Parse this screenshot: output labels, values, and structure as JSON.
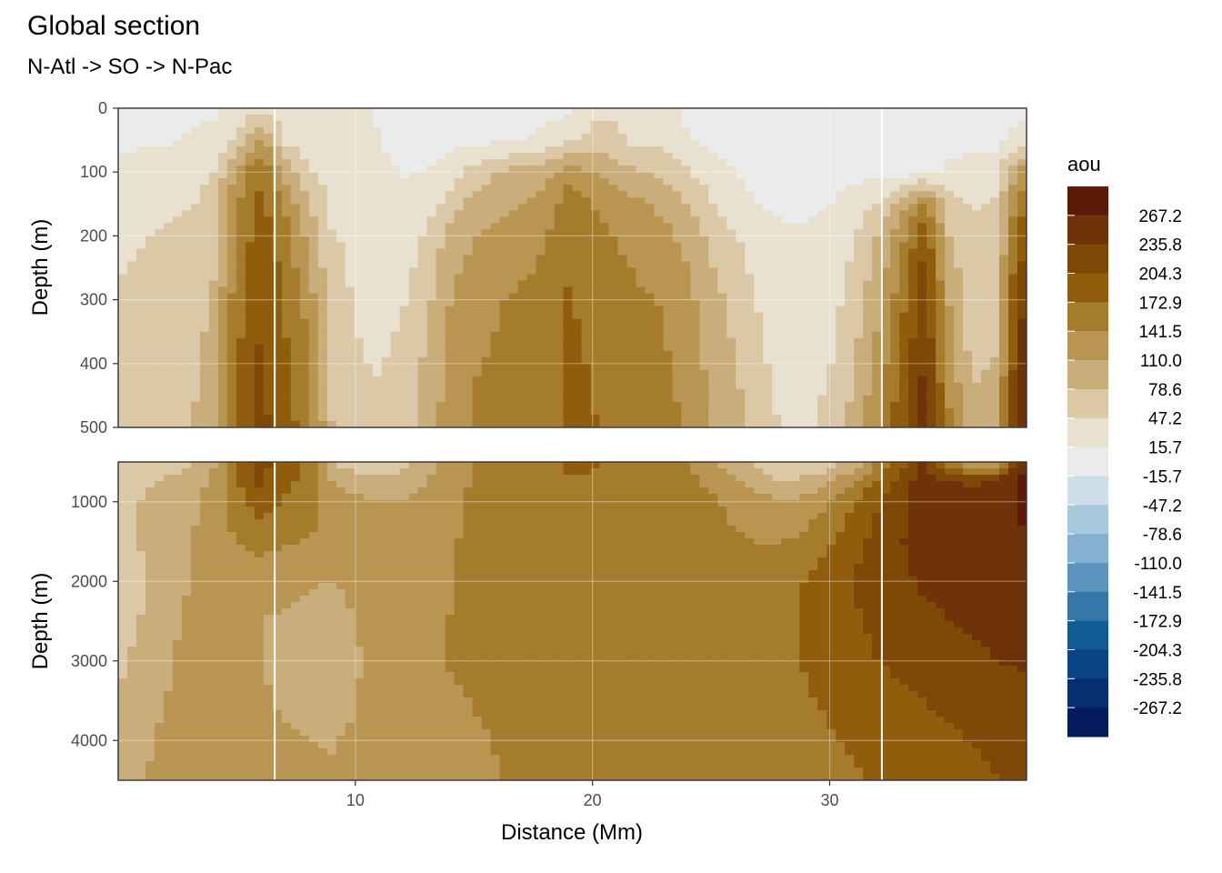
{
  "chart_data": {
    "type": "heatmap",
    "title": "Global section",
    "subtitle": "N-Atl -> SO -> N-Pac",
    "xlabel": "Distance (Mm)",
    "ylabel": "Depth (m)",
    "x_ticks": [
      "10",
      "20",
      "30"
    ],
    "x_range": [
      0,
      38.3
    ],
    "panels": [
      {
        "name": "upper",
        "ylim": [
          0,
          500
        ],
        "y_ticks": [
          "0",
          "100",
          "200",
          "300",
          "400",
          "500"
        ]
      },
      {
        "name": "lower",
        "ylim": [
          500,
          4500
        ],
        "y_ticks": [
          "1000",
          "2000",
          "3000",
          "4000"
        ]
      }
    ],
    "legend": {
      "title": "aou",
      "position": "right",
      "breaks": [
        "267.2",
        "235.8",
        "204.3",
        "172.9",
        "141.5",
        "110.0",
        "78.6",
        "47.2",
        "15.7",
        "-15.7",
        "-47.2",
        "-78.6",
        "-110.0",
        "-141.5",
        "-172.9",
        "-204.3",
        "-235.8",
        "-267.2"
      ],
      "colors": [
        "#5e1a08",
        "#6f3209",
        "#7e4807",
        "#8f5d0c",
        "#a57c2c",
        "#b99552",
        "#c9ad7a",
        "#dbc8a6",
        "#e9e1d0",
        "#e9ecea",
        "#cfdfe8",
        "#a8c8dc",
        "#85b0cf",
        "#5d94bf",
        "#3577a8",
        "#125c96",
        "#0a4485",
        "#062f72",
        "#031b5e"
      ]
    },
    "x": [
      0,
      1,
      2,
      3,
      4,
      5,
      6,
      7,
      8,
      9,
      10,
      11,
      12,
      13,
      14,
      15,
      16,
      17,
      18,
      19,
      20,
      21,
      22,
      23,
      24,
      25,
      26,
      27,
      28,
      29,
      30,
      31,
      32,
      33,
      34,
      35,
      36,
      37,
      38
    ],
    "depth": [
      0,
      50,
      100,
      150,
      200,
      300,
      400,
      500,
      750,
      1000,
      1500,
      2000,
      2500,
      3000,
      3500,
      4000,
      4500
    ],
    "aou": [
      [
        5,
        5,
        5,
        8,
        10,
        30,
        35,
        30,
        28,
        25,
        20,
        15,
        10,
        5,
        5,
        5,
        5,
        5,
        5,
        10,
        35,
        40,
        15,
        30,
        5,
        5,
        5,
        5,
        5,
        5,
        5,
        5,
        5,
        5,
        5,
        5,
        5,
        5,
        5
      ],
      [
        8,
        10,
        12,
        20,
        25,
        50,
        120,
        40,
        35,
        30,
        25,
        15,
        10,
        5,
        5,
        5,
        10,
        15,
        25,
        40,
        60,
        55,
        35,
        40,
        20,
        10,
        5,
        5,
        5,
        5,
        5,
        5,
        5,
        5,
        5,
        5,
        5,
        5,
        30
      ],
      [
        25,
        30,
        35,
        40,
        45,
        120,
        170,
        100,
        50,
        35,
        30,
        20,
        15,
        15,
        30,
        60,
        80,
        90,
        100,
        130,
        110,
        90,
        80,
        70,
        50,
        30,
        15,
        5,
        5,
        5,
        5,
        5,
        5,
        5,
        10,
        20,
        30,
        40,
        120
      ],
      [
        30,
        35,
        40,
        45,
        55,
        140,
        180,
        140,
        80,
        40,
        35,
        25,
        20,
        30,
        60,
        90,
        100,
        110,
        120,
        160,
        140,
        130,
        115,
        100,
        80,
        50,
        30,
        15,
        10,
        10,
        15,
        30,
        50,
        90,
        150,
        60,
        45,
        50,
        160
      ],
      [
        40,
        45,
        50,
        55,
        70,
        150,
        190,
        160,
        100,
        50,
        40,
        30,
        30,
        50,
        90,
        110,
        120,
        130,
        140,
        170,
        150,
        140,
        130,
        120,
        100,
        70,
        50,
        30,
        20,
        20,
        25,
        45,
        80,
        130,
        200,
        80,
        50,
        60,
        190
      ],
      [
        50,
        55,
        60,
        65,
        80,
        160,
        200,
        170,
        130,
        60,
        45,
        35,
        45,
        70,
        110,
        130,
        140,
        145,
        150,
        175,
        165,
        155,
        145,
        140,
        120,
        90,
        70,
        45,
        30,
        25,
        35,
        60,
        100,
        160,
        230,
        110,
        60,
        70,
        230
      ],
      [
        55,
        60,
        65,
        70,
        90,
        170,
        210,
        180,
        150,
        70,
        50,
        45,
        55,
        85,
        120,
        140,
        145,
        150,
        155,
        180,
        170,
        160,
        150,
        145,
        130,
        100,
        80,
        55,
        35,
        30,
        45,
        75,
        120,
        180,
        240,
        130,
        70,
        80,
        250
      ],
      [
        60,
        65,
        70,
        75,
        100,
        175,
        215,
        185,
        160,
        80,
        60,
        55,
        65,
        95,
        125,
        145,
        150,
        155,
        160,
        180,
        175,
        165,
        155,
        150,
        140,
        110,
        90,
        65,
        45,
        40,
        60,
        90,
        140,
        190,
        250,
        150,
        90,
        100,
        260
      ],
      [
        70,
        75,
        80,
        90,
        120,
        170,
        210,
        180,
        165,
        110,
        90,
        85,
        90,
        110,
        130,
        145,
        150,
        155,
        160,
        170,
        170,
        165,
        160,
        155,
        150,
        135,
        120,
        100,
        80,
        90,
        110,
        140,
        180,
        220,
        250,
        240,
        230,
        250,
        270
      ],
      [
        75,
        80,
        90,
        100,
        120,
        160,
        190,
        170,
        160,
        130,
        120,
        110,
        110,
        120,
        135,
        145,
        150,
        155,
        160,
        165,
        165,
        165,
        160,
        160,
        155,
        145,
        135,
        120,
        110,
        120,
        140,
        170,
        200,
        230,
        250,
        250,
        240,
        250,
        270
      ],
      [
        70,
        80,
        95,
        110,
        125,
        140,
        150,
        145,
        140,
        135,
        130,
        125,
        125,
        130,
        140,
        145,
        150,
        150,
        155,
        160,
        160,
        160,
        160,
        160,
        155,
        150,
        145,
        140,
        140,
        150,
        170,
        195,
        215,
        235,
        245,
        250,
        250,
        260,
        265
      ],
      [
        60,
        75,
        95,
        110,
        120,
        125,
        125,
        120,
        115,
        110,
        120,
        130,
        130,
        135,
        140,
        145,
        148,
        150,
        152,
        155,
        155,
        155,
        155,
        155,
        152,
        150,
        148,
        150,
        160,
        175,
        190,
        205,
        220,
        230,
        240,
        245,
        245,
        250,
        255
      ],
      [
        60,
        80,
        100,
        115,
        120,
        115,
        110,
        105,
        95,
        90,
        110,
        130,
        135,
        140,
        142,
        145,
        148,
        150,
        150,
        152,
        152,
        152,
        152,
        150,
        150,
        150,
        150,
        155,
        165,
        180,
        190,
        200,
        210,
        220,
        230,
        235,
        240,
        245,
        250
      ],
      [
        70,
        90,
        105,
        120,
        125,
        120,
        110,
        100,
        90,
        85,
        105,
        125,
        135,
        140,
        142,
        145,
        146,
        148,
        148,
        150,
        150,
        150,
        150,
        148,
        148,
        148,
        150,
        155,
        165,
        175,
        185,
        195,
        205,
        210,
        220,
        225,
        230,
        235,
        240
      ],
      [
        80,
        100,
        110,
        125,
        130,
        125,
        115,
        105,
        95,
        95,
        110,
        125,
        135,
        140,
        140,
        142,
        144,
        146,
        146,
        148,
        148,
        148,
        148,
        146,
        146,
        146,
        148,
        152,
        160,
        170,
        178,
        185,
        192,
        198,
        205,
        210,
        215,
        220,
        225
      ],
      [
        90,
        105,
        115,
        125,
        130,
        125,
        120,
        115,
        110,
        108,
        115,
        125,
        132,
        138,
        138,
        140,
        142,
        144,
        144,
        146,
        146,
        146,
        146,
        145,
        145,
        145,
        147,
        150,
        155,
        162,
        170,
        176,
        182,
        188,
        195,
        200,
        205,
        210,
        215
      ],
      [
        95,
        108,
        118,
        126,
        130,
        128,
        124,
        120,
        116,
        114,
        118,
        126,
        132,
        136,
        137,
        139,
        141,
        143,
        143,
        145,
        145,
        145,
        145,
        144,
        144,
        144,
        146,
        148,
        152,
        158,
        165,
        170,
        176,
        182,
        188,
        193,
        198,
        203,
        208
      ]
    ]
  }
}
